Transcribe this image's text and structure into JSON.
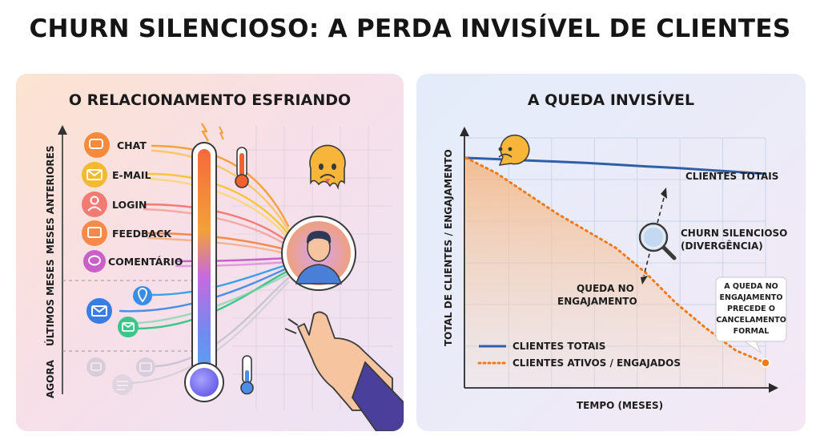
{
  "title": "CHURN SILENCIOSO: A PERDA INVISÍVEL DE CLIENTES",
  "left_panel": {
    "title": "O RELACIONAMENTO ESFRIANDO",
    "y_axis": {
      "sections": [
        "MESES ANTERIORES",
        "ÚLTIMOS MESES",
        "AGORA"
      ]
    },
    "channels": [
      {
        "label": "CHAT",
        "icon": "chat-icon",
        "color": "#f4a23a"
      },
      {
        "label": "E-MAIL",
        "icon": "email-icon",
        "color": "#f2c43b"
      },
      {
        "label": "LOGIN",
        "icon": "user-icon",
        "color": "#f27c73"
      },
      {
        "label": "FEEDBACK",
        "icon": "feedback-icon",
        "color": "#f58a4b"
      },
      {
        "label": "COMENTÁRIO",
        "icon": "comment-icon",
        "color": "#c860c8"
      }
    ],
    "recent_icons": [
      "location-icon",
      "email-icon",
      "email-icon"
    ],
    "fading_icons": [
      "chat-icon",
      "email-icon",
      "note-icon"
    ]
  },
  "right_panel": {
    "title": "A QUEDA INVISÍVEL",
    "annotations": {
      "total_label": "CLIENTES TOTAIS",
      "churn_label_1": "CHURN SILENCIOSO",
      "churn_label_2": "(DIVERGÊNCIA)",
      "drop_label_1": "QUEDA NO",
      "drop_label_2": "ENGAJAMENTO",
      "callout": [
        "A QUEDA NO",
        "ENGAJAMENTO",
        "PRECEDE O",
        "CANCELAMENTO",
        "FORMAL"
      ]
    },
    "colors": {
      "total": "#2f5fa8",
      "engaged": "#ef7a1a"
    }
  },
  "chart_data": {
    "type": "line",
    "title": "A QUEDA INVISÍVEL",
    "xlabel": "TEMPO (MESES)",
    "ylabel": "TOTAL DE CLIENTES / ENGAJAMENTO",
    "x": [
      0,
      1,
      2,
      3,
      4,
      5,
      6,
      7,
      8,
      9,
      10
    ],
    "series": [
      {
        "name": "CLIENTES TOTAIS",
        "values": [
          92,
          91.5,
          91,
          90.5,
          90,
          89.3,
          88.6,
          88,
          87.2,
          86.4,
          85.6
        ],
        "style": "solid"
      },
      {
        "name": "CLIENTES ATIVOS / ENGAJADOS",
        "values": [
          92,
          86,
          78,
          70,
          63,
          56,
          46,
          34,
          24,
          15,
          10
        ],
        "style": "dotted"
      }
    ],
    "ylim": [
      0,
      100
    ],
    "legend": "bottom-left",
    "grid": true
  }
}
